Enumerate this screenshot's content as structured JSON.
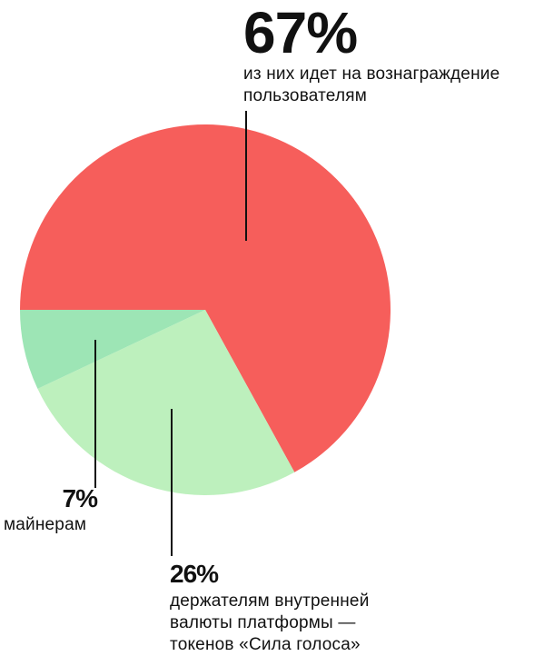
{
  "chart_data": {
    "type": "pie",
    "title": "",
    "slices": [
      {
        "label": "из них идет на вознаграждение пользователям",
        "value": 67,
        "display": "67%",
        "color": "#F65E5B"
      },
      {
        "label": "держателям внутренней валюты платформы — токенов «Сила голоса»",
        "value": 26,
        "display": "26%",
        "color": "#BDF0BD"
      },
      {
        "label": "майнерам",
        "value": 7,
        "display": "7%",
        "color": "#9DE5B5"
      }
    ],
    "start_angle_deg": 180,
    "direction": "clockwise",
    "leader_color": "#111111"
  },
  "labels": {
    "users_pct": "67%",
    "users_desc_line1": "из них идет на вознаграждение",
    "users_desc_line2": "пользователям",
    "miners_pct": "7%",
    "miners_desc": "майнерам",
    "holders_pct": "26%",
    "holders_desc_line1": "держателям внутренней",
    "holders_desc_line2": "валюты платформы —",
    "holders_desc_line3": "токенов «Сила голоса»"
  }
}
